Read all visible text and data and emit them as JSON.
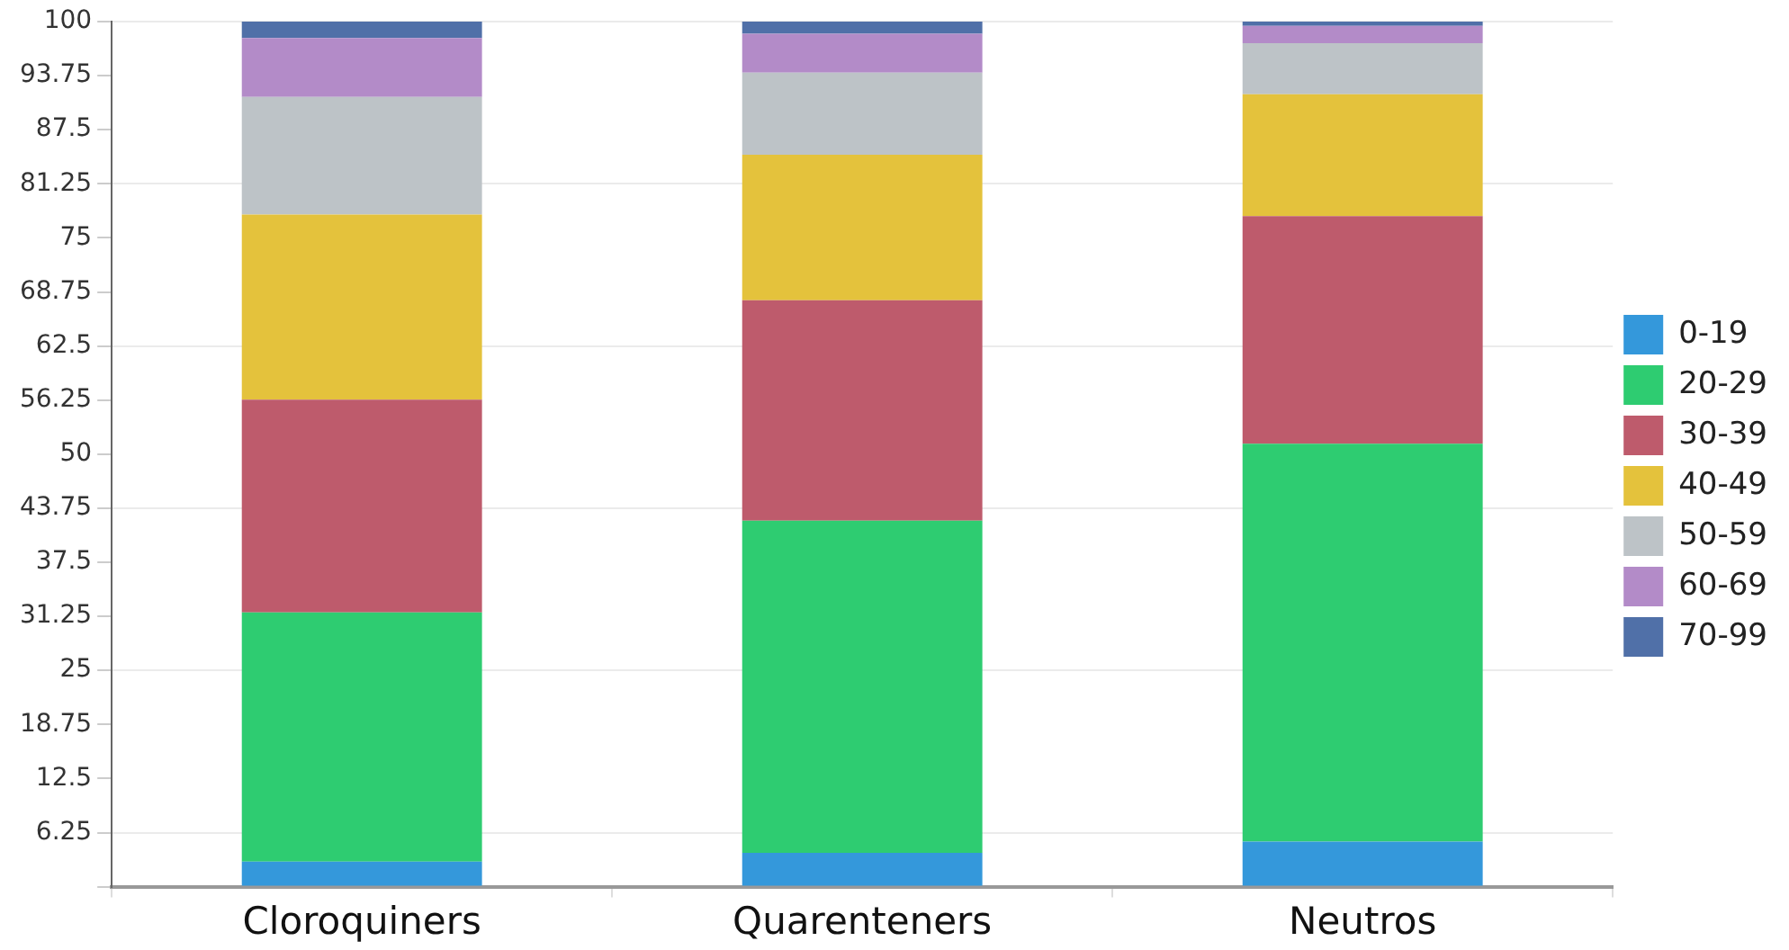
{
  "chart_data": {
    "type": "bar",
    "stacked": true,
    "categories": [
      "Cloroquiners",
      "Quarenteners",
      "Neutros"
    ],
    "series": [
      {
        "name": "0-19",
        "color": "#3498db",
        "values": [
          2.9,
          3.9,
          5.2
        ]
      },
      {
        "name": "20-29",
        "color": "#2ecc71",
        "values": [
          28.8,
          38.4,
          46.0
        ]
      },
      {
        "name": "30-39",
        "color": "#be5b6c",
        "values": [
          24.6,
          25.5,
          26.3
        ]
      },
      {
        "name": "40-49",
        "color": "#e4c23c",
        "values": [
          21.4,
          16.8,
          14.1
        ]
      },
      {
        "name": "50-59",
        "color": "#bdc3c7",
        "values": [
          13.6,
          9.5,
          5.9
        ]
      },
      {
        "name": "60-69",
        "color": "#b38bc8",
        "values": [
          6.8,
          4.5,
          2.0
        ]
      },
      {
        "name": "70-99",
        "color": "#5070a8",
        "values": [
          1.9,
          1.4,
          0.5
        ]
      }
    ],
    "ylim": [
      0,
      100
    ],
    "yticks": [
      {
        "value": 0,
        "label": null
      },
      6.25,
      12.5,
      18.75,
      25,
      31.25,
      37.5,
      43.75,
      50,
      56.25,
      62.5,
      68.75,
      75,
      81.25,
      87.5,
      93.75,
      100
    ],
    "grid": "y",
    "legend": "right"
  }
}
